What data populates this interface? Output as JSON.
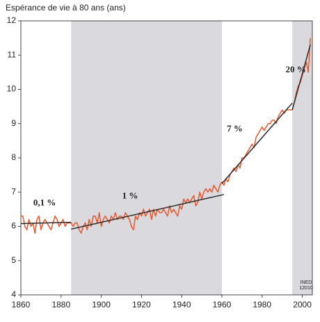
{
  "chart_data": {
    "type": "line",
    "title": "Espérance de vie à 80 ans (ans)",
    "watermark": [
      "INED",
      "12010"
    ],
    "x": [
      1860,
      1861,
      1862,
      1863,
      1864,
      1865,
      1866,
      1867,
      1868,
      1869,
      1870,
      1871,
      1872,
      1873,
      1874,
      1875,
      1876,
      1877,
      1878,
      1879,
      1880,
      1881,
      1882,
      1883,
      1884,
      1885,
      1886,
      1887,
      1888,
      1889,
      1890,
      1891,
      1892,
      1893,
      1894,
      1895,
      1896,
      1897,
      1898,
      1899,
      1900,
      1901,
      1902,
      1903,
      1904,
      1905,
      1906,
      1907,
      1908,
      1909,
      1910,
      1911,
      1912,
      1913,
      1914,
      1915,
      1916,
      1917,
      1918,
      1919,
      1920,
      1921,
      1922,
      1923,
      1924,
      1925,
      1926,
      1927,
      1928,
      1929,
      1930,
      1931,
      1932,
      1933,
      1934,
      1935,
      1936,
      1937,
      1938,
      1939,
      1940,
      1941,
      1942,
      1943,
      1944,
      1945,
      1946,
      1947,
      1948,
      1949,
      1950,
      1951,
      1952,
      1953,
      1954,
      1955,
      1956,
      1957,
      1958,
      1959,
      1960,
      1961,
      1962,
      1963,
      1964,
      1965,
      1966,
      1967,
      1968,
      1969,
      1970,
      1971,
      1972,
      1973,
      1974,
      1975,
      1976,
      1977,
      1978,
      1979,
      1980,
      1981,
      1982,
      1983,
      1984,
      1985,
      1986,
      1987,
      1988,
      1989,
      1990,
      1991,
      1992,
      1993,
      1994,
      1995,
      1996,
      1997,
      1998,
      1999,
      2000,
      2001,
      2002,
      2003,
      2004
    ],
    "series": [
      {
        "color": "#e8572b",
        "values": [
          6.3,
          6.3,
          6.0,
          5.9,
          6.2,
          6.0,
          6.1,
          5.8,
          6.2,
          6.3,
          5.9,
          6.1,
          6.2,
          6.1,
          6.0,
          5.9,
          6.1,
          6.3,
          6.2,
          6.0,
          6.1,
          6.2,
          6.0,
          6.1,
          6.1,
          6.1,
          6.0,
          6.1,
          6.1,
          5.9,
          5.8,
          6.0,
          6.1,
          5.9,
          6.2,
          6.0,
          6.3,
          6.3,
          6.1,
          6.4,
          6.0,
          6.2,
          6.3,
          6.2,
          6.1,
          6.3,
          6.2,
          6.4,
          6.2,
          6.3,
          6.3,
          6.2,
          6.4,
          6.3,
          6.2,
          6.0,
          5.9,
          6.3,
          6.2,
          6.4,
          6.3,
          6.5,
          6.3,
          6.4,
          6.5,
          6.2,
          6.5,
          6.3,
          6.5,
          6.4,
          6.4,
          6.5,
          6.4,
          6.3,
          6.6,
          6.4,
          6.5,
          6.4,
          6.3,
          6.6,
          6.5,
          6.8,
          6.7,
          6.8,
          6.7,
          6.8,
          6.9,
          6.6,
          6.7,
          7.0,
          6.8,
          7.0,
          7.1,
          7.0,
          7.1,
          7.0,
          7.2,
          7.1,
          7.0,
          7.2,
          7.3,
          7.2,
          7.4,
          7.3,
          7.5,
          7.6,
          7.7,
          7.6,
          7.8,
          7.7,
          8.0,
          8.0,
          8.1,
          8.2,
          8.3,
          8.4,
          8.3,
          8.6,
          8.7,
          8.8,
          8.9,
          8.8,
          8.9,
          9.0,
          9.0,
          9.1,
          9.1,
          9.0,
          9.2,
          9.3,
          9.4,
          9.3,
          9.4,
          9.4,
          9.4,
          9.4,
          9.6,
          9.9,
          10.1,
          10.2,
          10.4,
          10.6,
          10.8,
          10.5,
          11.5
        ]
      }
    ],
    "trends": [
      {
        "label": "0,1 %",
        "x": [
          1860,
          1885
        ],
        "values": [
          6.08,
          6.12
        ]
      },
      {
        "label": "1 %",
        "x": [
          1885,
          1961
        ],
        "values": [
          5.92,
          6.93
        ]
      },
      {
        "label": "7 %",
        "x": [
          1960,
          1995
        ],
        "values": [
          7.25,
          9.6
        ]
      },
      {
        "label": "20 %",
        "x": [
          1995,
          2004
        ],
        "values": [
          9.4,
          11.3
        ]
      }
    ],
    "trend_color": "#2b2b2b",
    "shaded_periods": [
      [
        1885,
        1960
      ],
      [
        1995,
        2005
      ]
    ],
    "shade_color": "#d9d9de",
    "xlim": [
      1860,
      2005
    ],
    "ylim": [
      4,
      12
    ],
    "xticks": [
      1860,
      1880,
      1900,
      1920,
      1940,
      1960,
      1980,
      2000
    ],
    "yticks": [
      4,
      5,
      6,
      7,
      8,
      9,
      10,
      11,
      12
    ]
  }
}
